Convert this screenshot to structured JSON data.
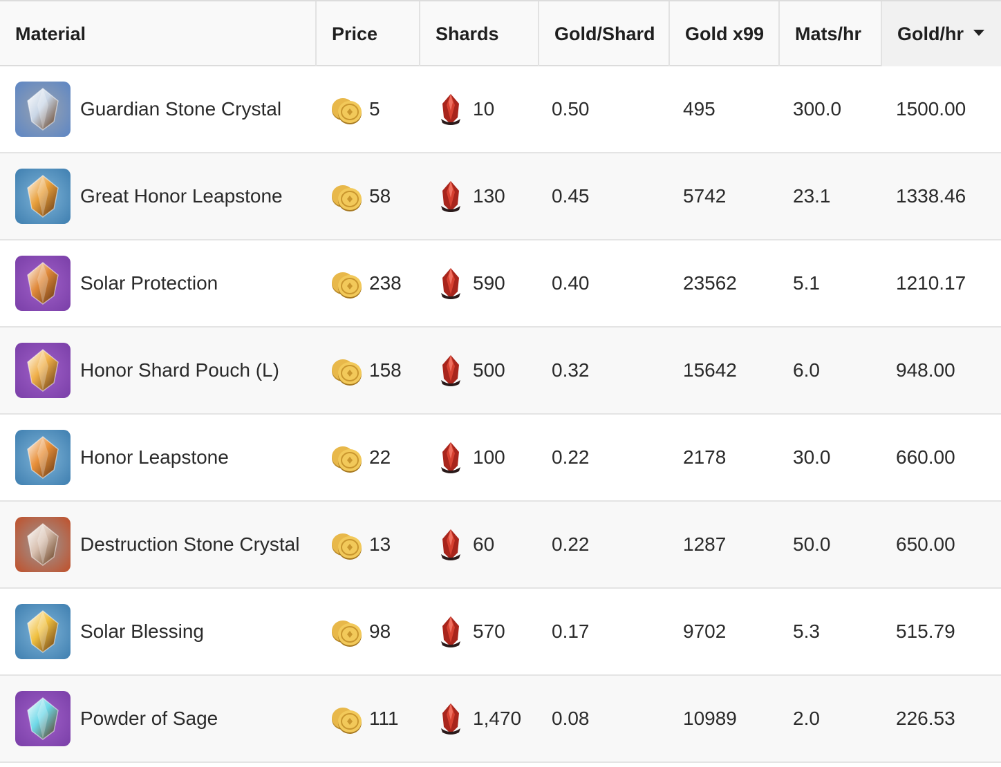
{
  "headers": {
    "material": "Material",
    "price": "Price",
    "shards": "Shards",
    "gold_per_shard": "Gold/Shard",
    "gold_x99": "Gold x99",
    "mats_per_hr": "Mats/hr",
    "gold_per_hr": "Gold/hr"
  },
  "sort": {
    "column": "gold_per_hr",
    "direction": "descending"
  },
  "rows": [
    {
      "name": "Guardian Stone Crystal",
      "icon": "guardian-stone-crystal-icon",
      "icon_colors": [
        "#c9d6e6",
        "#5d86c4",
        "#9aa3b0"
      ],
      "price": "5",
      "shards": "10",
      "gold_per_shard": "0.50",
      "gold_x99": "495",
      "mats_per_hr": "300.0",
      "gold_per_hr": "1500.00"
    },
    {
      "name": "Great Honor Leapstone",
      "icon": "great-honor-leapstone-icon",
      "icon_colors": [
        "#e8a03c",
        "#3f7fb0",
        "#7fb4d8"
      ],
      "price": "58",
      "shards": "130",
      "gold_per_shard": "0.45",
      "gold_x99": "5742",
      "mats_per_hr": "23.1",
      "gold_per_hr": "1338.46"
    },
    {
      "name": "Solar Protection",
      "icon": "solar-protection-icon",
      "icon_colors": [
        "#e0893a",
        "#7a3fa8",
        "#a060c8"
      ],
      "price": "238",
      "shards": "590",
      "gold_per_shard": "0.40",
      "gold_x99": "23562",
      "mats_per_hr": "5.1",
      "gold_per_hr": "1210.17"
    },
    {
      "name": "Honor Shard Pouch (L)",
      "icon": "honor-shard-pouch-icon",
      "icon_colors": [
        "#f0b04a",
        "#7a3fa8",
        "#a060c8"
      ],
      "price": "158",
      "shards": "500",
      "gold_per_shard": "0.32",
      "gold_x99": "15642",
      "mats_per_hr": "6.0",
      "gold_per_hr": "948.00"
    },
    {
      "name": "Honor Leapstone",
      "icon": "honor-leapstone-icon",
      "icon_colors": [
        "#e8903a",
        "#3f7fb0",
        "#7fb4d8"
      ],
      "price": "22",
      "shards": "100",
      "gold_per_shard": "0.22",
      "gold_x99": "2178",
      "mats_per_hr": "30.0",
      "gold_per_hr": "660.00"
    },
    {
      "name": "Destruction Stone Crystal",
      "icon": "destruction-stone-crystal-icon",
      "icon_colors": [
        "#d8c0b0",
        "#c0502a",
        "#9a9a9a"
      ],
      "price": "13",
      "shards": "60",
      "gold_per_shard": "0.22",
      "gold_x99": "1287",
      "mats_per_hr": "50.0",
      "gold_per_hr": "650.00"
    },
    {
      "name": "Solar Blessing",
      "icon": "solar-blessing-icon",
      "icon_colors": [
        "#f0c040",
        "#3f7fb0",
        "#7fb4d8"
      ],
      "price": "98",
      "shards": "570",
      "gold_per_shard": "0.17",
      "gold_x99": "9702",
      "mats_per_hr": "5.3",
      "gold_per_hr": "515.79"
    },
    {
      "name": "Powder of Sage",
      "icon": "powder-of-sage-icon",
      "icon_colors": [
        "#6fd8e8",
        "#7a3fa8",
        "#a060c8"
      ],
      "price": "111",
      "shards": "1,470",
      "gold_per_shard": "0.08",
      "gold_x99": "10989",
      "mats_per_hr": "2.0",
      "gold_per_hr": "226.53"
    }
  ],
  "colors": {
    "header_bg": "#f9f9f9",
    "row_alt_bg": "#f8f8f8",
    "border": "#e4e4e4",
    "coin": "#e8b84a",
    "shard": "#a8251c"
  }
}
